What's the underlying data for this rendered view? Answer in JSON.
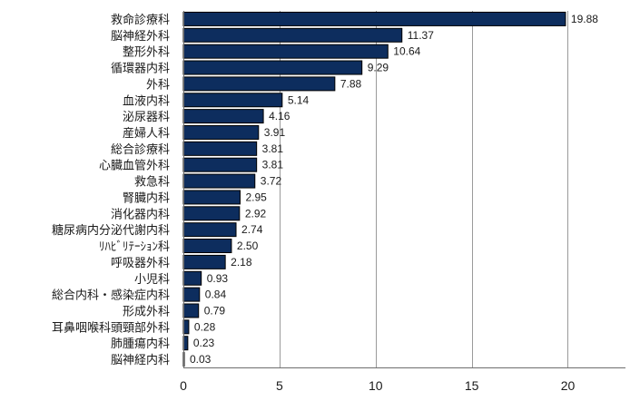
{
  "chart_data": {
    "type": "bar",
    "orientation": "horizontal",
    "categories": [
      "救命診療科",
      "脳神経外科",
      "整形外科",
      "循環器内科",
      "外科",
      "血液内科",
      "泌尿器科",
      "産婦人科",
      "総合診療科",
      "心臓血管外科",
      "救急科",
      "腎臓内科",
      "消化器内科",
      "糖尿病内分泌代謝内科",
      "ﾘﾊﾋﾞﾘﾃｰｼｮﾝ科",
      "呼吸器外科",
      "小児科",
      "総合内科・感染症内科",
      "形成外科",
      "耳鼻咽喉科頭頸部外科",
      "肺腫瘍内科",
      "脳神経内科"
    ],
    "values": [
      19.88,
      11.37,
      10.64,
      9.29,
      7.88,
      5.14,
      4.16,
      3.91,
      3.81,
      3.81,
      3.72,
      2.95,
      2.92,
      2.74,
      2.5,
      2.18,
      0.93,
      0.84,
      0.79,
      0.28,
      0.23,
      0.03
    ],
    "value_labels": [
      "19.88",
      "11.37",
      "10.64",
      "9.29",
      "7.88",
      "5.14",
      "4.16",
      "3.91",
      "3.81",
      "3.81",
      "3.72",
      "2.95",
      "2.92",
      "2.74",
      "2.50",
      "2.18",
      "0.93",
      "0.84",
      "0.79",
      "0.28",
      "0.23",
      "0.03"
    ],
    "xlim": [
      0,
      23
    ],
    "xticks": [
      0,
      5,
      10,
      15,
      20
    ],
    "grid": true,
    "bar_color": "#0d2d5e",
    "grid_color": "#9a9a9a",
    "title": "",
    "xlabel": "",
    "ylabel": ""
  }
}
